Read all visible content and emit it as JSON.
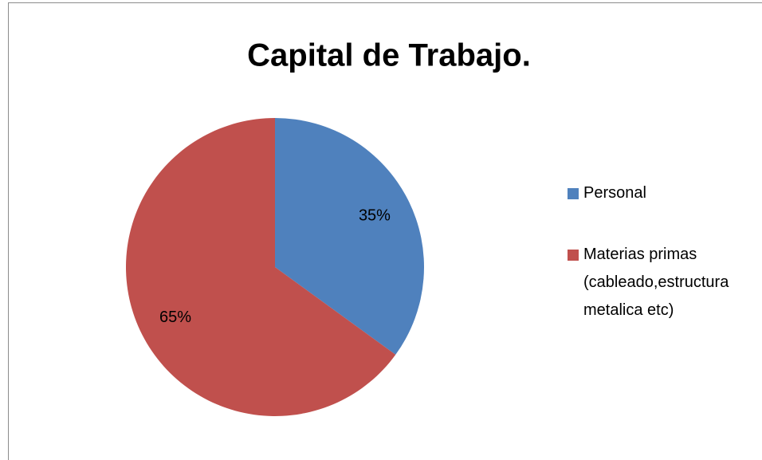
{
  "chart_data": {
    "type": "pie",
    "title": "Capital de Trabajo.",
    "categories": [
      "Personal",
      "Materias primas (cableado,estructura metalica etc)"
    ],
    "values": [
      35,
      65
    ],
    "value_labels": [
      "35%",
      "65%"
    ],
    "colors": [
      "#4f81bd",
      "#c0504d"
    ],
    "legend": "right"
  }
}
